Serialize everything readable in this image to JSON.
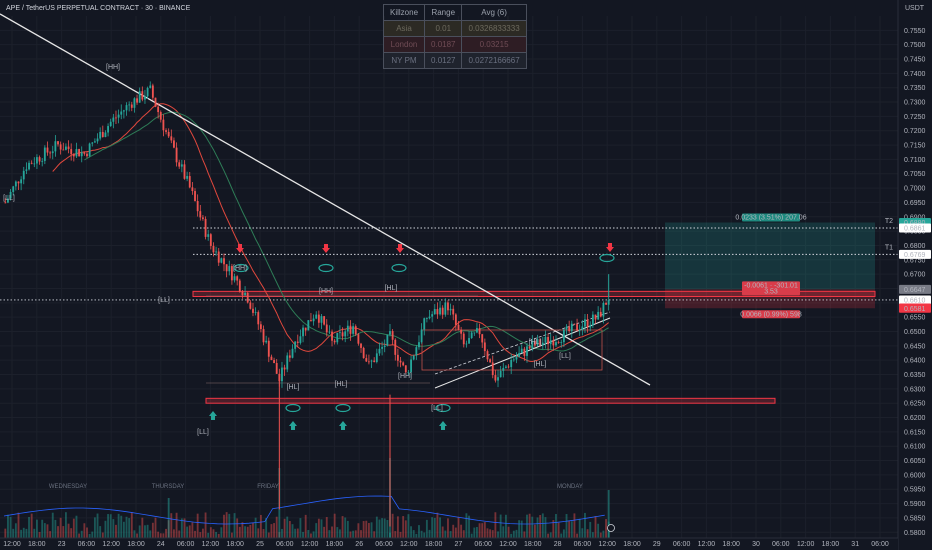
{
  "header": {
    "symbol": "APE / TetherUS PERPETUAL CONTRACT · 30 · BINANCE",
    "currency": "USDT"
  },
  "killzone": {
    "headers": [
      "Killzone",
      "Range",
      "Avg (6)"
    ],
    "rows": [
      {
        "name": "Asia",
        "range": "0.01",
        "avg": "0.0326833333"
      },
      {
        "name": "London",
        "range": "0.0187",
        "avg": "0.03215"
      },
      {
        "name": "NY PM",
        "range": "0.0127",
        "avg": "0.0272166667"
      }
    ]
  },
  "chart_data": {
    "type": "candlestick",
    "ylim": [
      0.578,
      0.76
    ],
    "y_ticks": [
      "0.7550",
      "0.7500",
      "0.7450",
      "0.7400",
      "0.7350",
      "0.7300",
      "0.7250",
      "0.7200",
      "0.7150",
      "0.7100",
      "0.7050",
      "0.7000",
      "0.6950",
      "0.6900",
      "0.6850",
      "0.6800",
      "0.6750",
      "0.6700",
      "0.6650",
      "0.6600",
      "0.6550",
      "0.6500",
      "0.6450",
      "0.6400",
      "0.6350",
      "0.6300",
      "0.6250",
      "0.6200",
      "0.6150",
      "0.6100",
      "0.6050",
      "0.6000",
      "0.5950",
      "0.5900",
      "0.5850",
      "0.5800"
    ],
    "x_ticks": [
      "12:00",
      "18:00",
      "23",
      "06:00",
      "12:00",
      "18:00",
      "24",
      "06:00",
      "12:00",
      "18:00",
      "25",
      "06:00",
      "12:00",
      "18:00",
      "26",
      "06:00",
      "12:00",
      "18:00",
      "27",
      "06:00",
      "12:00",
      "18:00",
      "28",
      "06:00",
      "12:00",
      "18:00",
      "29",
      "06:00",
      "12:00",
      "18:00",
      "30",
      "06:00",
      "12:00",
      "18:00",
      "31",
      "06:00"
    ],
    "day_labels": [
      "WEDNESDAY",
      "THURSDAY",
      "FRIDAY",
      "MONDAY"
    ],
    "price_labels": [
      {
        "text": "0.6880",
        "price": 0.688,
        "color": "#26a69a"
      },
      {
        "text": "0.6861",
        "price": 0.6861,
        "color": "#ffffff"
      },
      {
        "text": "0.6769",
        "price": 0.6769,
        "color": "#ffffff"
      },
      {
        "text": "0.6647",
        "price": 0.6647,
        "color": "#787b86"
      },
      {
        "text": "0.6610",
        "price": 0.661,
        "color": "#ffffff"
      },
      {
        "text": "0.6582",
        "price": 0.6582,
        "color": "#f23645"
      },
      {
        "text": "0.6581",
        "price": 0.6581,
        "color": "#f23645"
      }
    ],
    "targets": [
      {
        "label": "T2",
        "price": 0.6861
      },
      {
        "label": "T1",
        "price": 0.6769
      }
    ],
    "position": {
      "entry": 0.6647,
      "target": 0.688,
      "stop": 0.6581,
      "target_label": "0.0233 (3.51%) 207.06",
      "entry_label_1": "-0.0061 · -301.01",
      "entry_label_2": "3.53",
      "stop_label": "0.0066 (0.99%) 598"
    },
    "current_price": 0.661,
    "zones": [
      {
        "name": "supply",
        "top": 0.664,
        "bottom": 0.6622
      },
      {
        "name": "demand",
        "top": 0.6267,
        "bottom": 0.625
      }
    ],
    "swing_labels": [
      "[HH]",
      "[LL]",
      "[LL]",
      "[HH]",
      "[HH]",
      "[HL]",
      "[LL]",
      "[HL]",
      "[HL]",
      "[HH]",
      "[LL]",
      "[HL]",
      "[HL]",
      "[LL]"
    ],
    "series": [
      {
        "name": "price",
        "close": [
          0.698,
          0.704,
          0.712,
          0.706,
          0.718,
          0.715,
          0.722,
          0.73,
          0.725,
          0.733,
          0.72,
          0.71,
          0.695,
          0.68,
          0.672,
          0.66,
          0.655,
          0.65,
          0.642,
          0.63,
          0.648,
          0.656,
          0.645,
          0.652,
          0.64,
          0.65,
          0.635,
          0.645,
          0.653,
          0.658,
          0.65,
          0.642,
          0.64,
          0.643,
          0.646,
          0.648,
          0.647,
          0.65,
          0.652,
          0.655,
          0.661
        ]
      }
    ]
  }
}
